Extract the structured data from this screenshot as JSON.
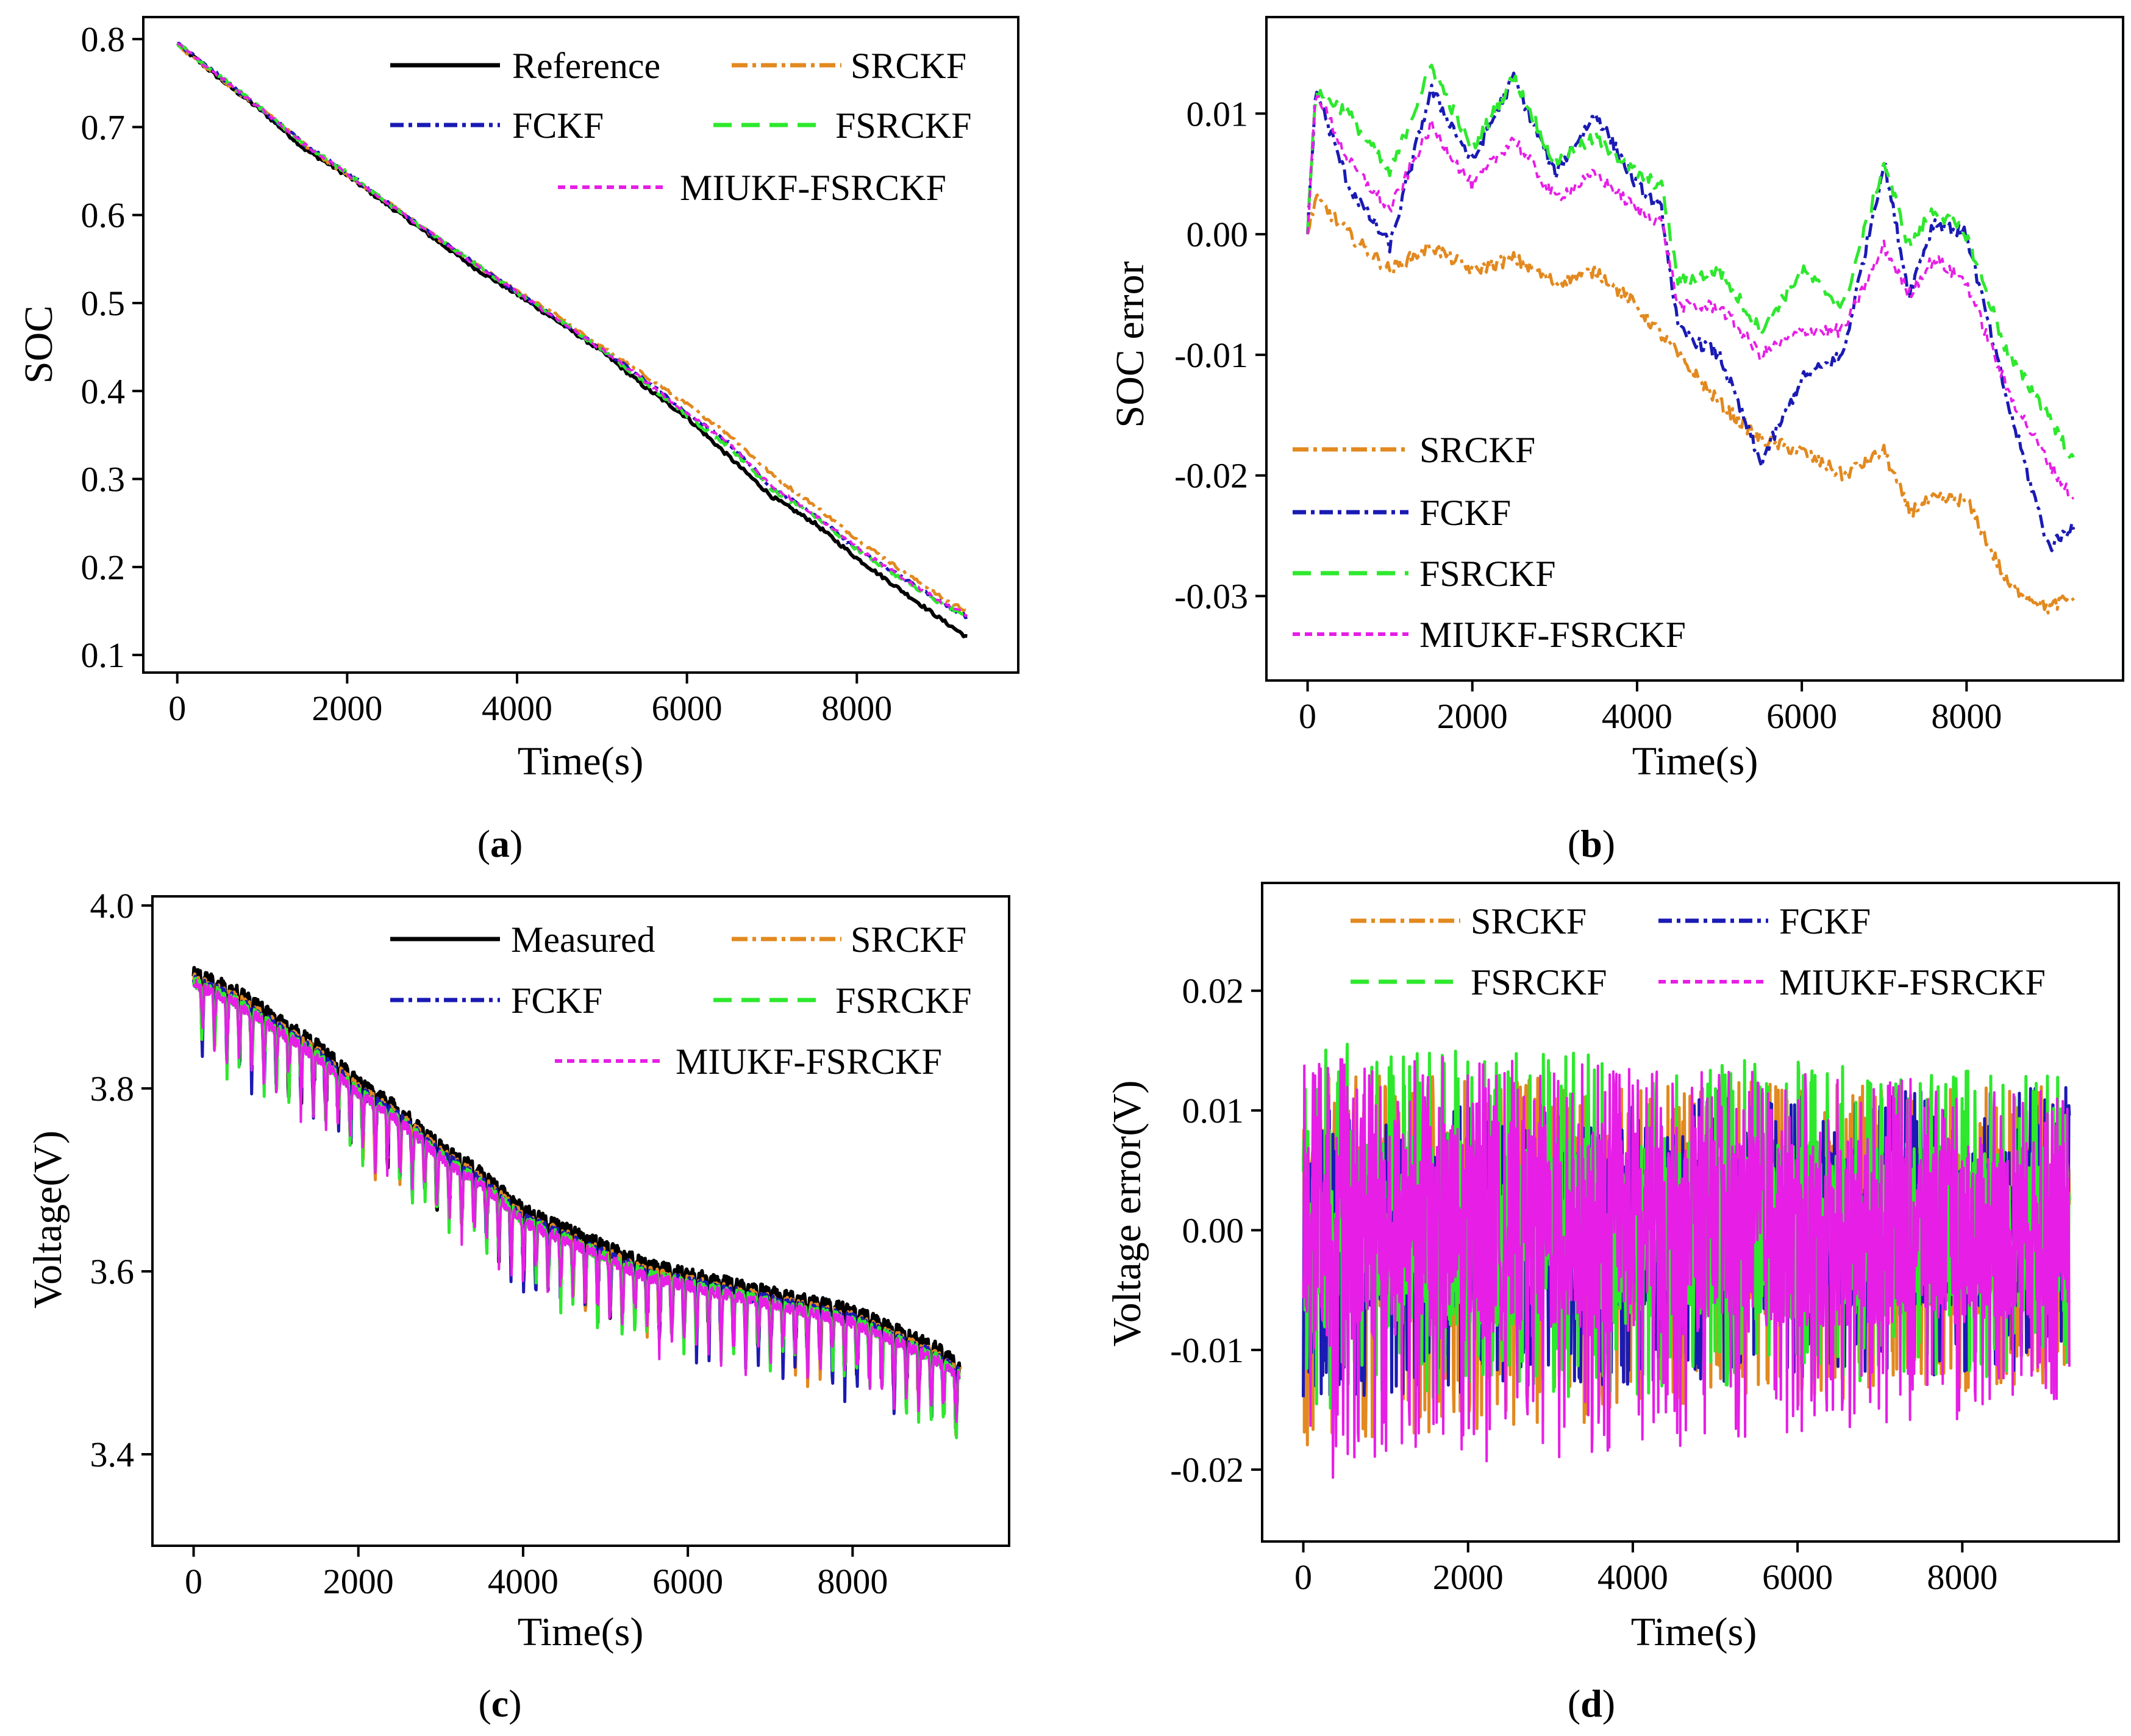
{
  "colors": {
    "Reference": "#000000",
    "Measured": "#000000",
    "SRCKF": "#e2891f",
    "FCKF": "#1a1ab4",
    "FSRCKF": "#2ee82e",
    "MIUKF-FSRCKF": "#e61ee6"
  },
  "captions": {
    "a": "(a)",
    "b": "(b)",
    "c": "(c)",
    "d": "(d)"
  },
  "caption_parts": {
    "a": {
      "open": "(",
      "letter": "a",
      "close": ")"
    },
    "b": {
      "open": "(",
      "letter": "b",
      "close": ")"
    },
    "c": {
      "open": "(",
      "letter": "c",
      "close": ")"
    },
    "d": {
      "open": "(",
      "letter": "d",
      "close": ")"
    }
  },
  "chart_data": [
    {
      "id": "a",
      "type": "line",
      "xlabel": "Time(s)",
      "ylabel": "SOC",
      "xlim": [
        -400,
        9900
      ],
      "ylim": [
        0.08,
        0.825
      ],
      "xticks": [
        0,
        2000,
        4000,
        6000,
        8000
      ],
      "xtick_labels": [
        "0",
        "2000",
        "4000",
        "6000",
        "8000"
      ],
      "yticks": [
        0.1,
        0.2,
        0.3,
        0.4,
        0.5,
        0.6,
        0.7,
        0.8
      ],
      "ytick_labels": [
        "0.1",
        "0.2",
        "0.3",
        "0.4",
        "0.5",
        "0.6",
        "0.7",
        "0.8"
      ],
      "legend": [
        "Reference",
        "SRCKF",
        "FCKF",
        "FSRCKF",
        "MIUKF-FSRCKF"
      ],
      "series": [
        {
          "name": "Reference",
          "x": [
            0,
            500,
            1000,
            1500,
            2000,
            2500,
            3000,
            3500,
            4000,
            4500,
            5000,
            5500,
            6000,
            6500,
            7000,
            7500,
            8000,
            8500,
            9000,
            9300
          ],
          "values": [
            0.795,
            0.755,
            0.718,
            0.675,
            0.645,
            0.61,
            0.575,
            0.54,
            0.51,
            0.478,
            0.445,
            0.405,
            0.37,
            0.325,
            0.28,
            0.25,
            0.21,
            0.175,
            0.14,
            0.12
          ]
        },
        {
          "name": "SRCKF",
          "x": [
            0,
            500,
            1000,
            1500,
            2000,
            2500,
            3000,
            3500,
            4000,
            4500,
            5000,
            5500,
            6000,
            6500,
            7000,
            7500,
            8000,
            8500,
            9000,
            9300
          ],
          "values": [
            0.793,
            0.755,
            0.72,
            0.68,
            0.645,
            0.613,
            0.578,
            0.545,
            0.513,
            0.484,
            0.45,
            0.418,
            0.385,
            0.35,
            0.305,
            0.27,
            0.232,
            0.198,
            0.165,
            0.15
          ]
        },
        {
          "name": "FCKF",
          "x": [
            0,
            500,
            1000,
            1500,
            2000,
            2500,
            3000,
            3500,
            4000,
            4500,
            5000,
            5500,
            6000,
            6500,
            7000,
            7500,
            8000,
            8500,
            9000,
            9300
          ],
          "values": [
            0.795,
            0.758,
            0.72,
            0.68,
            0.648,
            0.612,
            0.578,
            0.545,
            0.512,
            0.48,
            0.447,
            0.413,
            0.375,
            0.34,
            0.29,
            0.26,
            0.22,
            0.19,
            0.16,
            0.143
          ]
        },
        {
          "name": "FSRCKF",
          "x": [
            0,
            500,
            1000,
            1500,
            2000,
            2500,
            3000,
            3500,
            4000,
            4500,
            5000,
            5500,
            6000,
            6500,
            7000,
            7500,
            8000,
            8500,
            9000,
            9300
          ],
          "values": [
            0.795,
            0.758,
            0.72,
            0.68,
            0.648,
            0.612,
            0.578,
            0.545,
            0.512,
            0.48,
            0.447,
            0.41,
            0.372,
            0.336,
            0.288,
            0.258,
            0.22,
            0.188,
            0.158,
            0.145
          ]
        },
        {
          "name": "MIUKF-FSRCKF",
          "x": [
            0,
            500,
            1000,
            1500,
            2000,
            2500,
            3000,
            3500,
            4000,
            4500,
            5000,
            5500,
            6000,
            6500,
            7000,
            7500,
            8000,
            8500,
            9000,
            9300
          ],
          "values": [
            0.795,
            0.757,
            0.72,
            0.68,
            0.647,
            0.612,
            0.578,
            0.544,
            0.512,
            0.48,
            0.447,
            0.412,
            0.375,
            0.34,
            0.292,
            0.26,
            0.222,
            0.19,
            0.16,
            0.145
          ]
        }
      ]
    },
    {
      "id": "b",
      "type": "line",
      "xlabel": "Time(s)",
      "ylabel": "SOC error",
      "xlim": [
        -500,
        9900
      ],
      "ylim": [
        -0.037,
        0.018
      ],
      "xticks": [
        0,
        2000,
        4000,
        6000,
        8000
      ],
      "xtick_labels": [
        "0",
        "2000",
        "4000",
        "6000",
        "8000"
      ],
      "yticks": [
        -0.03,
        -0.02,
        -0.01,
        0.0,
        0.01
      ],
      "ytick_labels": [
        "-0.03",
        "-0.02",
        "-0.01",
        "0.00",
        "0.01"
      ],
      "legend": [
        "SRCKF",
        "FCKF",
        "FSRCKF",
        "MIUKF-FSRCKF"
      ],
      "series": [
        {
          "name": "SRCKF",
          "x": [
            0,
            100,
            500,
            1000,
            1500,
            2000,
            2500,
            3000,
            3500,
            4000,
            4500,
            5000,
            5500,
            6000,
            6500,
            7000,
            7300,
            7600,
            8000,
            8500,
            9000,
            9300
          ],
          "values": [
            0.0,
            0.003,
            0.0,
            -0.003,
            -0.001,
            -0.003,
            -0.002,
            -0.004,
            -0.003,
            -0.006,
            -0.01,
            -0.014,
            -0.017,
            -0.018,
            -0.02,
            -0.018,
            -0.023,
            -0.022,
            -0.022,
            -0.029,
            -0.031,
            -0.03
          ]
        },
        {
          "name": "FCKF",
          "x": [
            0,
            100,
            500,
            1000,
            1500,
            2000,
            2500,
            3000,
            3500,
            4000,
            4300,
            4500,
            5000,
            5500,
            6000,
            6500,
            7000,
            7300,
            7600,
            8000,
            8500,
            9000,
            9300
          ],
          "values": [
            0.0,
            0.012,
            0.004,
            -0.001,
            0.012,
            0.006,
            0.013,
            0.005,
            0.01,
            0.004,
            0.002,
            -0.008,
            -0.01,
            -0.019,
            -0.012,
            -0.01,
            0.006,
            -0.005,
            0.001,
            0.0,
            -0.014,
            -0.026,
            -0.024
          ]
        },
        {
          "name": "FSRCKF",
          "x": [
            0,
            100,
            500,
            1000,
            1500,
            2000,
            2500,
            3000,
            3500,
            4000,
            4300,
            4500,
            5000,
            5500,
            6000,
            6500,
            7000,
            7300,
            7600,
            8000,
            8500,
            9000,
            9300
          ],
          "values": [
            0.0,
            0.012,
            0.01,
            0.005,
            0.014,
            0.007,
            0.013,
            0.006,
            0.008,
            0.005,
            0.004,
            -0.004,
            -0.003,
            -0.008,
            -0.003,
            -0.006,
            0.006,
            -0.001,
            0.002,
            0.0,
            -0.01,
            -0.015,
            -0.019
          ]
        },
        {
          "name": "MIUKF-FSRCKF",
          "x": [
            0,
            100,
            500,
            1000,
            1500,
            2000,
            2500,
            3000,
            3500,
            4000,
            4300,
            4500,
            5000,
            5500,
            6000,
            6500,
            7000,
            7300,
            7600,
            8000,
            8500,
            9000,
            9300
          ],
          "values": [
            0.0,
            0.012,
            0.006,
            0.002,
            0.009,
            0.004,
            0.008,
            0.003,
            0.005,
            0.002,
            0.001,
            -0.006,
            -0.006,
            -0.01,
            -0.008,
            -0.008,
            -0.001,
            -0.005,
            -0.002,
            -0.004,
            -0.013,
            -0.019,
            -0.022
          ]
        }
      ]
    },
    {
      "id": "c",
      "type": "line",
      "xlabel": "Time(s)",
      "ylabel": "Voltage(V)",
      "xlim": [
        -500,
        9900
      ],
      "ylim": [
        3.3,
        4.01
      ],
      "xticks": [
        0,
        2000,
        4000,
        6000,
        8000
      ],
      "xtick_labels": [
        "0",
        "2000",
        "4000",
        "6000",
        "8000"
      ],
      "yticks": [
        3.4,
        3.6,
        3.8,
        4.0
      ],
      "ytick_labels": [
        "3.4",
        "3.6",
        "3.8",
        "4.0"
      ],
      "legend": [
        "Measured",
        "SRCKF",
        "FCKF",
        "FSRCKF",
        "MIUKF-FSRCKF"
      ],
      "series": [
        {
          "name": "Measured",
          "x": [
            0,
            500,
            1000,
            1500,
            2000,
            2500,
            3000,
            3500,
            4000,
            4500,
            5000,
            5500,
            6000,
            6500,
            7000,
            7500,
            8000,
            8500,
            9000,
            9300
          ],
          "values": [
            3.92,
            3.9,
            3.87,
            3.84,
            3.8,
            3.77,
            3.73,
            3.7,
            3.66,
            3.64,
            3.62,
            3.6,
            3.59,
            3.58,
            3.57,
            3.56,
            3.55,
            3.53,
            3.51,
            3.49
          ]
        },
        {
          "name": "SRCKF",
          "x": [
            0,
            500,
            1000,
            1500,
            2000,
            2500,
            3000,
            3500,
            4000,
            4500,
            5000,
            5500,
            6000,
            6500,
            7000,
            7500,
            8000,
            8500,
            9000,
            9300
          ],
          "values": [
            3.92,
            3.9,
            3.87,
            3.84,
            3.8,
            3.77,
            3.73,
            3.7,
            3.66,
            3.64,
            3.62,
            3.6,
            3.59,
            3.58,
            3.57,
            3.56,
            3.55,
            3.53,
            3.51,
            3.49
          ]
        },
        {
          "name": "FCKF",
          "x": [
            0,
            500,
            1000,
            1500,
            2000,
            2500,
            3000,
            3500,
            4000,
            4500,
            5000,
            5500,
            6000,
            6500,
            7000,
            7500,
            8000,
            8500,
            9000,
            9300
          ],
          "values": [
            3.92,
            3.9,
            3.87,
            3.84,
            3.8,
            3.77,
            3.73,
            3.7,
            3.66,
            3.64,
            3.62,
            3.6,
            3.59,
            3.58,
            3.57,
            3.56,
            3.55,
            3.53,
            3.51,
            3.49
          ]
        },
        {
          "name": "FSRCKF",
          "x": [
            0,
            500,
            1000,
            1500,
            2000,
            2500,
            3000,
            3500,
            4000,
            4500,
            5000,
            5500,
            6000,
            6500,
            7000,
            7500,
            8000,
            8500,
            9000,
            9300
          ],
          "values": [
            3.92,
            3.9,
            3.87,
            3.84,
            3.8,
            3.77,
            3.73,
            3.7,
            3.66,
            3.64,
            3.62,
            3.6,
            3.59,
            3.58,
            3.57,
            3.56,
            3.55,
            3.53,
            3.51,
            3.49
          ]
        },
        {
          "name": "MIUKF-FSRCKF",
          "x": [
            0,
            500,
            1000,
            1500,
            2000,
            2500,
            3000,
            3500,
            4000,
            4500,
            5000,
            5500,
            6000,
            6500,
            7000,
            7500,
            8000,
            8500,
            9000,
            9300
          ],
          "values": [
            3.92,
            3.9,
            3.87,
            3.84,
            3.8,
            3.77,
            3.73,
            3.7,
            3.66,
            3.64,
            3.62,
            3.6,
            3.59,
            3.58,
            3.57,
            3.56,
            3.55,
            3.53,
            3.51,
            3.49
          ]
        }
      ]
    },
    {
      "id": "d",
      "type": "line",
      "xlabel": "Time(s)",
      "ylabel": "Voltage error(V)",
      "xlim": [
        -500,
        9900
      ],
      "ylim": [
        -0.026,
        0.029
      ],
      "xticks": [
        0,
        2000,
        4000,
        6000,
        8000
      ],
      "xtick_labels": [
        "0",
        "2000",
        "4000",
        "6000",
        "8000"
      ],
      "yticks": [
        -0.02,
        -0.01,
        0.0,
        0.01,
        0.02
      ],
      "ytick_labels": [
        "-0.02",
        "-0.01",
        "0.00",
        "0.01",
        "0.02"
      ],
      "legend": [
        "SRCKF",
        "FCKF",
        "FSRCKF",
        "MIUKF-FSRCKF"
      ],
      "series": [
        {
          "name": "SRCKF",
          "x": [
            0,
            9300
          ],
          "min": [
            -0.018,
            -0.013
          ],
          "max": [
            0.013,
            0.012
          ]
        },
        {
          "name": "FCKF",
          "x": [
            0,
            9300
          ],
          "min": [
            -0.014,
            -0.012
          ],
          "max": [
            0.01,
            0.012
          ]
        },
        {
          "name": "FSRCKF",
          "x": [
            0,
            9300
          ],
          "min": [
            -0.015,
            -0.012
          ],
          "max": [
            0.016,
            0.013
          ]
        },
        {
          "name": "MIUKF-FSRCKF",
          "x": [
            0,
            9300
          ],
          "min": [
            -0.021,
            -0.015
          ],
          "max": [
            0.015,
            0.012
          ]
        }
      ]
    }
  ]
}
